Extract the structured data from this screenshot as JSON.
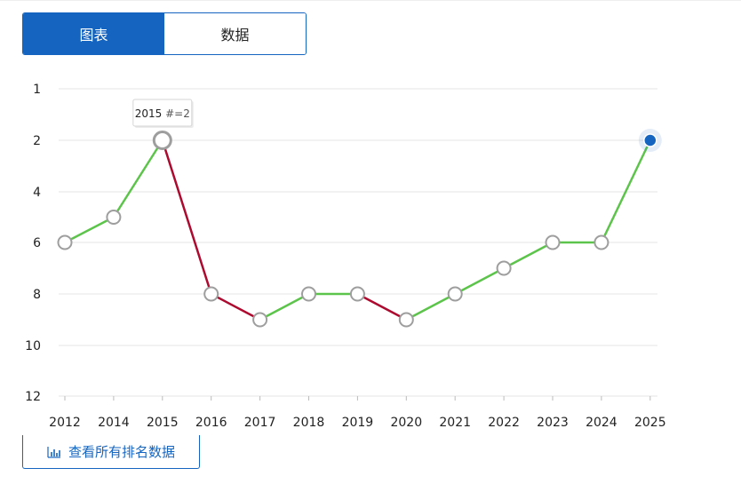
{
  "tabs": [
    {
      "label": "图表",
      "active": true
    },
    {
      "label": "数据",
      "active": false
    }
  ],
  "view_all_label": "查看所有排名数据",
  "tooltip": {
    "year": "2015",
    "text": "#=2"
  },
  "colors": {
    "up": "#5cc44a",
    "down": "#ad0a2f",
    "accent": "#1565c0",
    "grid": "#e6e6e6"
  },
  "chart_data": {
    "type": "line",
    "title": "",
    "xlabel": "",
    "ylabel": "",
    "y_reversed": true,
    "ylim": [
      1,
      12
    ],
    "y_ticks": [
      "1",
      "2",
      "4",
      "6",
      "8",
      "10",
      "12"
    ],
    "x": [
      "2012",
      "2014",
      "2015",
      "2016",
      "2017",
      "2018",
      "2019",
      "2020",
      "2021",
      "2022",
      "2023",
      "2024",
      "2025"
    ],
    "values": [
      6,
      5,
      2,
      8,
      9,
      8,
      8,
      9,
      8,
      7,
      6,
      6,
      2
    ],
    "highlighted_point": "2015",
    "current_point": "2025"
  }
}
